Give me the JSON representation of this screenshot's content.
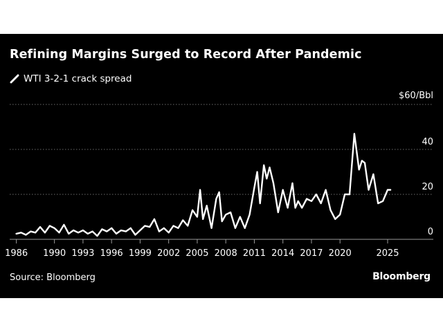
{
  "title": "Refining Margins Surged to Record After Pandemic",
  "legend": {
    "label": "WTI 3-2-1 crack spread",
    "icon": "line-swatch-icon",
    "color": "#ffffff"
  },
  "source": "Source: Bloomberg",
  "brand": "Bloomberg",
  "colors": {
    "background": "#000000",
    "text": "#ffffff",
    "line": "#ffffff",
    "grid": "#6b6b6b"
  },
  "chart_data": {
    "type": "line",
    "unit_label": "$60/Bbl",
    "y_ticks": [
      {
        "value": 60,
        "label": ""
      },
      {
        "value": 40,
        "label": "40"
      },
      {
        "value": 20,
        "label": "20"
      },
      {
        "value": 0,
        "label": "0"
      }
    ],
    "ylim": [
      0,
      60
    ],
    "xlim": [
      1985.3,
      2029.8
    ],
    "x_ticks": [
      1986,
      1990,
      1993,
      1996,
      1999,
      2002,
      2005,
      2008,
      2011,
      2014,
      2017,
      2020,
      2025
    ],
    "grid": true,
    "legend_position": "top-left",
    "series": [
      {
        "name": "WTI 3-2-1 crack spread",
        "x": [
          1986.0,
          1986.5,
          1987.0,
          1987.5,
          1988.0,
          1988.5,
          1989.0,
          1989.5,
          1990.0,
          1990.5,
          1991.0,
          1991.5,
          1992.0,
          1992.5,
          1993.0,
          1993.5,
          1994.0,
          1994.5,
          1995.0,
          1995.5,
          1996.0,
          1996.5,
          1997.0,
          1997.5,
          1998.0,
          1998.5,
          1999.0,
          1999.5,
          2000.0,
          2000.5,
          2001.0,
          2001.5,
          2002.0,
          2002.5,
          2003.0,
          2003.5,
          2004.0,
          2004.5,
          2005.0,
          2005.3,
          2005.6,
          2006.0,
          2006.5,
          2007.0,
          2007.3,
          2007.6,
          2008.0,
          2008.5,
          2009.0,
          2009.5,
          2010.0,
          2010.5,
          2011.0,
          2011.3,
          2011.6,
          2012.0,
          2012.3,
          2012.6,
          2013.0,
          2013.5,
          2014.0,
          2014.5,
          2015.0,
          2015.3,
          2015.6,
          2016.0,
          2016.5,
          2017.0,
          2017.5,
          2018.0,
          2018.5,
          2019.0,
          2019.5,
          2020.0,
          2020.5,
          2021.0,
          2021.5,
          2022.0,
          2022.3,
          2022.6,
          2023.0,
          2023.5,
          2024.0,
          2024.5,
          2025.0,
          2025.3
        ],
        "values": [
          2.5,
          3.0,
          2.0,
          3.5,
          3.0,
          5.5,
          3.0,
          6.0,
          5.0,
          3.0,
          6.5,
          2.5,
          4.0,
          3.0,
          4.0,
          2.5,
          3.5,
          1.5,
          4.5,
          3.5,
          5.0,
          2.5,
          4.0,
          3.5,
          5.0,
          2.0,
          4.0,
          6.0,
          5.5,
          9.0,
          3.5,
          5.0,
          3.0,
          6.0,
          5.0,
          8.5,
          6.0,
          13.0,
          10.0,
          22.0,
          9.0,
          15.0,
          5.0,
          18.0,
          21.0,
          8.0,
          11.0,
          12.0,
          5.0,
          10.0,
          5.0,
          11.0,
          23.0,
          30.0,
          16.0,
          33.0,
          27.0,
          32.0,
          25.0,
          12.0,
          22.0,
          14.0,
          25.0,
          14.0,
          17.0,
          14.0,
          18.0,
          17.0,
          20.0,
          16.0,
          22.0,
          13.0,
          9.0,
          11.0,
          20.0,
          20.0,
          47.0,
          31.0,
          35.0,
          34.0,
          22.0,
          29.0,
          16.0,
          17.0,
          22.0,
          22.0
        ]
      }
    ]
  }
}
